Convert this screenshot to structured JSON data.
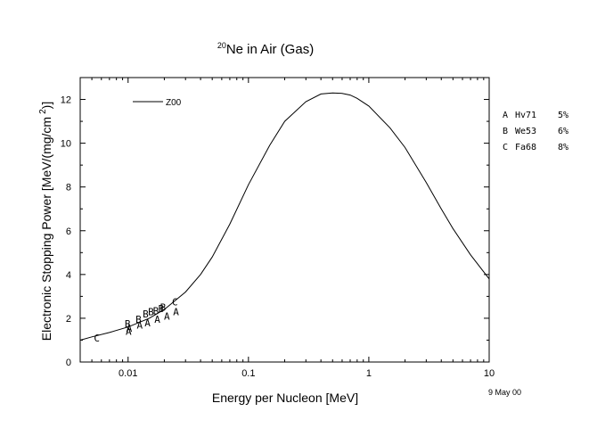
{
  "chart_data": {
    "type": "line",
    "title_sup": "20",
    "title": "Ne in Air (Gas)",
    "xlabel": "Energy per Nucleon [MeV]",
    "ylabel": "Electronic Stopping Power [MeV/(mg/cm",
    "ylabel_sup": "2",
    "ylabel_end": ")]",
    "xscale": "log",
    "xlim": [
      0.004,
      10
    ],
    "ylim": [
      0,
      13
    ],
    "xticks": [
      {
        "value": 0.01,
        "label": "0.01"
      },
      {
        "value": 0.1,
        "label": "0.1"
      },
      {
        "value": 1,
        "label": "1"
      },
      {
        "value": 10,
        "label": "10"
      }
    ],
    "yticks": [
      {
        "value": 0,
        "label": "0"
      },
      {
        "value": 2,
        "label": "2"
      },
      {
        "value": 4,
        "label": "4"
      },
      {
        "value": 6,
        "label": "6"
      },
      {
        "value": 8,
        "label": "8"
      },
      {
        "value": 10,
        "label": "10"
      },
      {
        "value": 12,
        "label": "12"
      }
    ],
    "series": [
      {
        "name": "Z00",
        "x": [
          0.004,
          0.005,
          0.007,
          0.01,
          0.015,
          0.02,
          0.03,
          0.04,
          0.05,
          0.07,
          0.1,
          0.15,
          0.2,
          0.3,
          0.4,
          0.5,
          0.6,
          0.7,
          0.8,
          1.0,
          1.5,
          2,
          3,
          4,
          5,
          7,
          10
        ],
        "y": [
          1.0,
          1.15,
          1.35,
          1.6,
          2.0,
          2.4,
          3.2,
          4.0,
          4.8,
          6.3,
          8.1,
          9.9,
          11.0,
          11.9,
          12.25,
          12.3,
          12.28,
          12.2,
          12.05,
          11.7,
          10.7,
          9.8,
          8.2,
          7.0,
          6.1,
          4.9,
          3.8
        ]
      }
    ],
    "markers": [
      {
        "label": "C",
        "x": 0.0055,
        "y": 1.1
      },
      {
        "label": "B",
        "x": 0.0099,
        "y": 1.75
      },
      {
        "label": "A",
        "x": 0.0101,
        "y": 1.4
      },
      {
        "label": "A",
        "x": 0.0102,
        "y": 1.55
      },
      {
        "label": "B",
        "x": 0.0122,
        "y": 1.95
      },
      {
        "label": "A",
        "x": 0.0125,
        "y": 1.7
      },
      {
        "label": "B",
        "x": 0.014,
        "y": 2.2
      },
      {
        "label": "A",
        "x": 0.0145,
        "y": 1.8
      },
      {
        "label": "B",
        "x": 0.0155,
        "y": 2.3
      },
      {
        "label": "B",
        "x": 0.017,
        "y": 2.35
      },
      {
        "label": "A",
        "x": 0.0175,
        "y": 1.95
      },
      {
        "label": "B",
        "x": 0.0188,
        "y": 2.45
      },
      {
        "label": "B",
        "x": 0.0195,
        "y": 2.5
      },
      {
        "label": "A",
        "x": 0.021,
        "y": 2.1
      },
      {
        "label": "C",
        "x": 0.0245,
        "y": 2.75
      },
      {
        "label": "A",
        "x": 0.025,
        "y": 2.3
      }
    ],
    "legend": {
      "position": "top-left",
      "label": "Z00"
    },
    "sources": [
      {
        "code": "A",
        "ref": "Hv71",
        "pct": "5%"
      },
      {
        "code": "B",
        "ref": "We53",
        "pct": "6%"
      },
      {
        "code": "C",
        "ref": "Fa68",
        "pct": "8%"
      }
    ],
    "date": "9 May 00",
    "grid": false
  }
}
